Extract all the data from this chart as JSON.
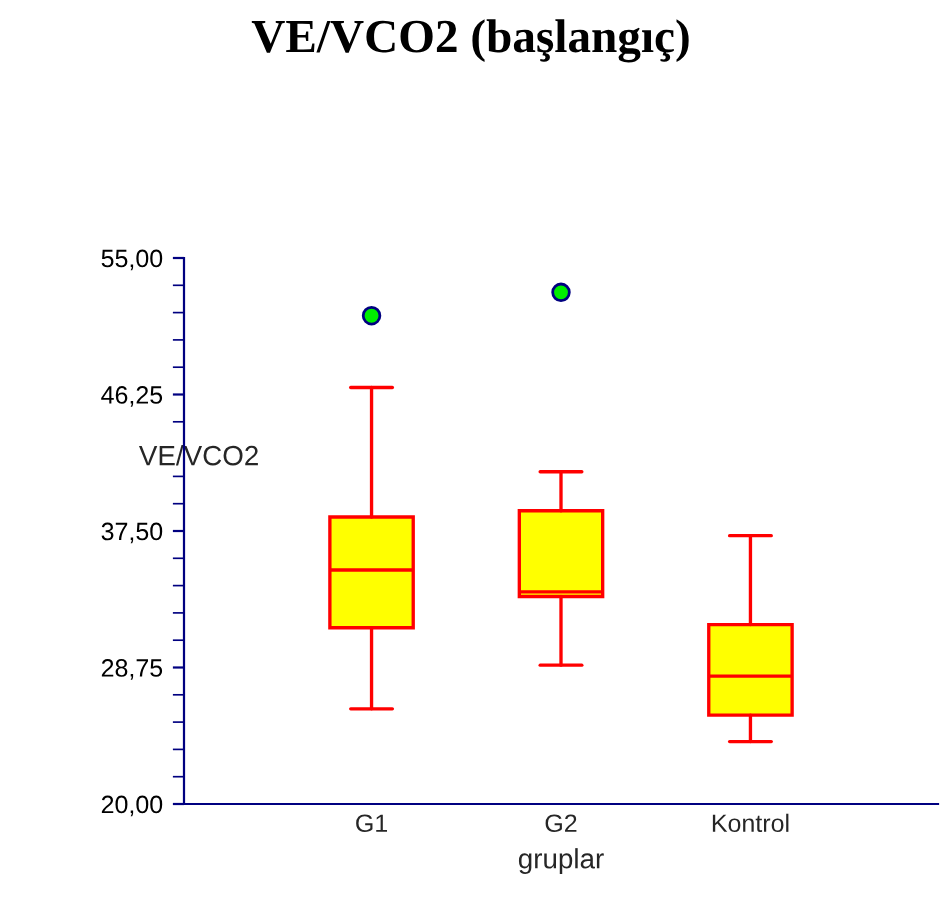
{
  "chart_data": {
    "type": "box",
    "title": "VE/VCO2 (başlangıç)",
    "xlabel": "gruplar",
    "ylabel": "VE/VCO2",
    "categories": [
      "G1",
      "G2",
      "Kontrol"
    ],
    "boxes": [
      {
        "low": 26.1,
        "q1": 31.3,
        "median": 35.0,
        "q3": 38.4,
        "high": 46.7,
        "outliers": [
          51.3
        ]
      },
      {
        "low": 28.9,
        "q1": 33.3,
        "median": 33.6,
        "q3": 38.8,
        "high": 41.3,
        "outliers": [
          52.8
        ]
      },
      {
        "low": 24.0,
        "q1": 25.7,
        "median": 28.2,
        "q3": 31.5,
        "high": 37.2
      }
    ],
    "color": "#ffff00",
    "ylim": [
      20,
      55
    ],
    "yticks": [
      {
        "value": 20,
        "label": "20,00"
      },
      {
        "value": 28.75,
        "label": "28,75"
      },
      {
        "value": 37.5,
        "label": "37,50"
      },
      {
        "value": 46.25,
        "label": "46,25"
      },
      {
        "value": 55,
        "label": "55,00"
      }
    ],
    "grid": false,
    "legend": false
  }
}
